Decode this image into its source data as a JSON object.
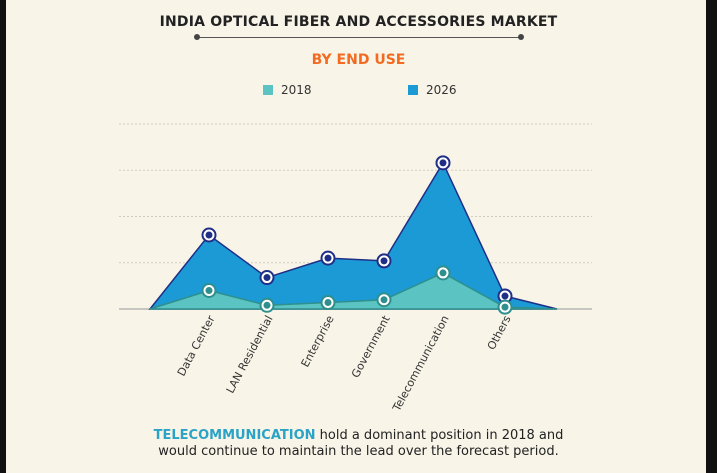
{
  "title": "INDIA OPTICAL FIBER AND ACCESSORIES MARKET",
  "subtitle": "BY END USE",
  "colors": {
    "s2018": "#5bc3c1",
    "s2026": "#1c9ad6",
    "title": "#222222",
    "accent": "#f26b21",
    "highlight": "#2aa3c7"
  },
  "chart_data": {
    "type": "area",
    "title": "INDIA OPTICAL FIBER AND ACCESSORIES MARKET",
    "subtitle": "BY END USE",
    "categories": [
      "Data Center",
      "LAN Residential",
      "Enterprise",
      "Government",
      "Telecommunication",
      "Others"
    ],
    "series": [
      {
        "name": "2018",
        "values": [
          20,
          4,
          7,
          10,
          39,
          2
        ]
      },
      {
        "name": "2026",
        "values": [
          80,
          34,
          55,
          52,
          158,
          14
        ]
      }
    ],
    "ylim": [
      0,
      200
    ],
    "grid": true,
    "legend": "top-center",
    "xlabel": "",
    "ylabel": ""
  },
  "footer": {
    "highlight": "TELECOMMUNICATION",
    "line1_rest": " hold a dominant position in 2018 and",
    "line2": "would continue to maintain the lead over the forecast period."
  }
}
